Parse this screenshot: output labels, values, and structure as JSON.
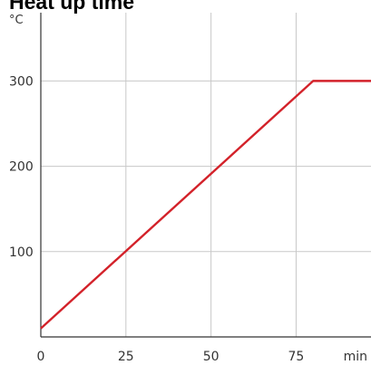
{
  "chart_data": {
    "type": "line",
    "title": "Heat up time",
    "ylabel": "°C",
    "xlabel": "min",
    "xlim": [
      0,
      97
    ],
    "ylim": [
      0,
      380
    ],
    "x_ticks": [
      0,
      25,
      50,
      75
    ],
    "y_ticks": [
      100,
      200,
      300
    ],
    "x_tick_labels": [
      "0",
      "25",
      "50",
      "75"
    ],
    "y_tick_labels": [
      "100",
      "200",
      "300"
    ],
    "grid": true,
    "series": [
      {
        "color": "#d3222a",
        "x": [
          0,
          80,
          97
        ],
        "y": [
          10,
          300,
          300
        ]
      }
    ],
    "colors": {
      "grid": "#c8c8c8",
      "axis": "#333333",
      "line": "#d3222a"
    }
  }
}
